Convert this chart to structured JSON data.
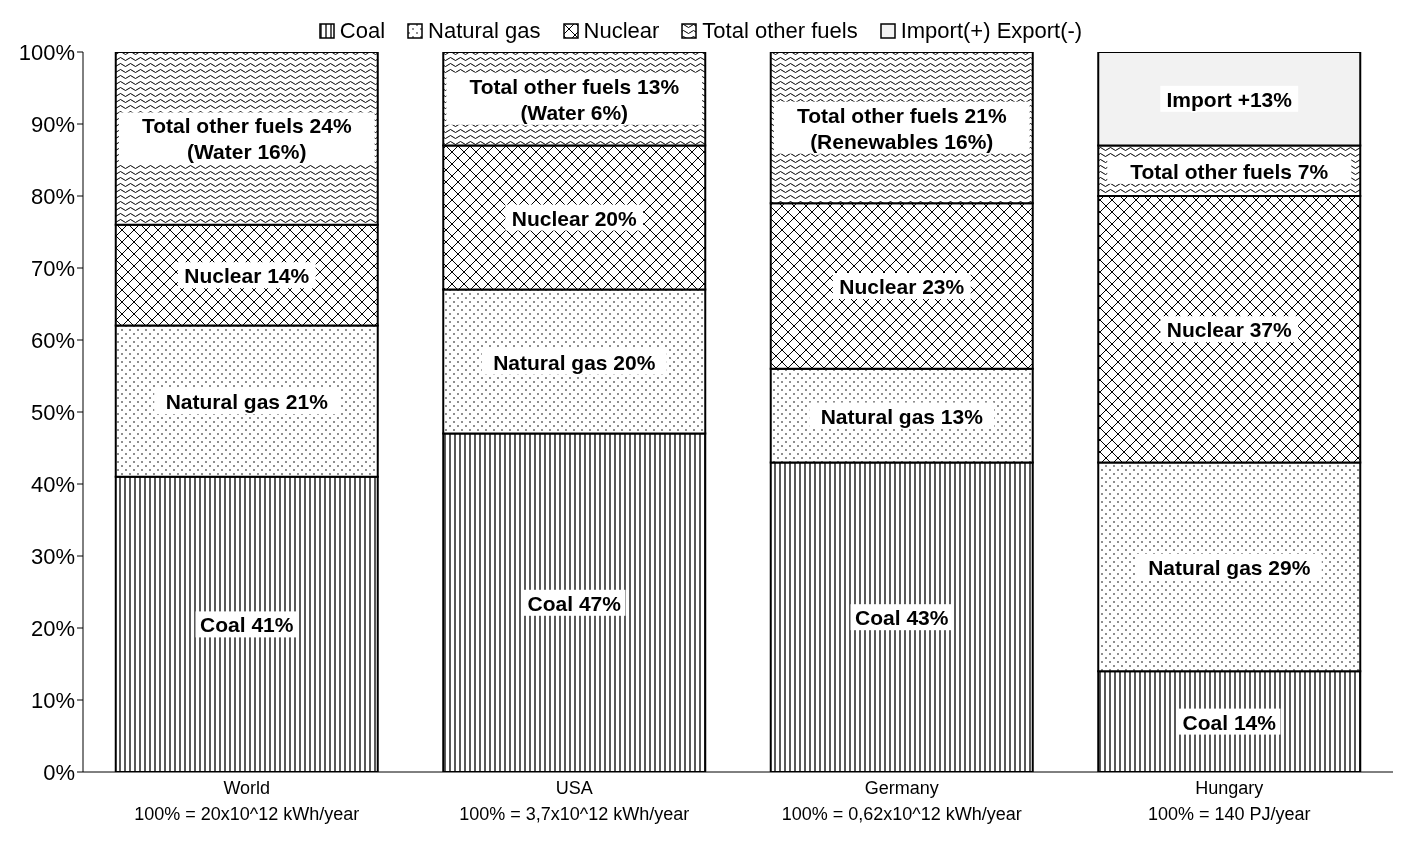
{
  "chart_data": {
    "type": "bar",
    "stacked": true,
    "categories": [
      "World\n100% = 20x10^12 kWh/year",
      "USA\n100% = 3,7x10^12 kWh/year",
      "Germany\n100% = 0,62x10^12 kWh/year",
      "Hungary\n100% = 140 PJ/year"
    ],
    "series": [
      {
        "name": "Coal",
        "color": "#000000",
        "values": [
          41,
          47,
          43,
          14
        ],
        "value_labels": [
          "Coal 41%",
          "Coal 47%",
          "Coal 43%",
          "Coal 14%"
        ]
      },
      {
        "name": "Natural gas",
        "color": "#000000",
        "values": [
          21,
          20,
          13,
          29
        ],
        "value_labels": [
          "Natural gas 21%",
          "Natural gas 20%",
          "Natural gas 13%",
          "Natural gas 29%"
        ]
      },
      {
        "name": "Nuclear",
        "color": "#000000",
        "values": [
          14,
          20,
          23,
          37
        ],
        "value_labels": [
          "Nuclear 14%",
          "Nuclear 20%",
          "Nuclear 23%",
          "Nuclear 37%"
        ]
      },
      {
        "name": "Total other fuels",
        "color": "#000000",
        "values": [
          24,
          13,
          21,
          7
        ],
        "value_labels": [
          "Total other fuels 24%\n(Water 16%)",
          "Total other fuels 13%\n(Water 6%)",
          "Total other fuels 21%\n(Renewables 16%)",
          "Total other fuels 7%"
        ]
      },
      {
        "name": "Import(+) Export(-)",
        "color": "#f2f2f2",
        "values": [
          null,
          null,
          null,
          13
        ],
        "value_labels": [
          null,
          null,
          null,
          "Import +13%"
        ]
      }
    ],
    "ylim": [
      0,
      100
    ],
    "yticks": [
      {
        "value": 0,
        "label": "0%"
      },
      {
        "value": 10,
        "label": "10%"
      },
      {
        "value": 20,
        "label": "20%"
      },
      {
        "value": 30,
        "label": "30%"
      },
      {
        "value": 40,
        "label": "40%"
      },
      {
        "value": 50,
        "label": "50%"
      },
      {
        "value": 60,
        "label": "60%"
      },
      {
        "value": 70,
        "label": "70%"
      },
      {
        "value": 80,
        "label": "80%"
      },
      {
        "value": 90,
        "label": "90%"
      },
      {
        "value": 100,
        "label": "100%"
      }
    ],
    "grid": false,
    "legend": "top"
  }
}
